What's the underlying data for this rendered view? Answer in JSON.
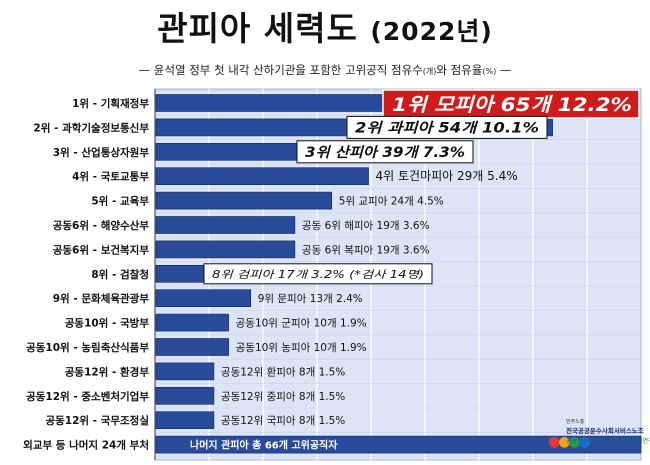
{
  "page": {
    "title": "관피아 세력도",
    "title_year": "(2022년)",
    "subtitle_main": "— 윤석열 정부 첫 내각 산하기관을 포함한 고위공직 점유수",
    "subtitle_unit1": "(개)",
    "subtitle_mid": "와 점유율",
    "subtitle_unit2": "(%)",
    "subtitle_end": " —"
  },
  "logo": {
    "line1": "민주노총",
    "line2": "전국공공운수사회서비스노조",
    "line3": "공공정책연구원(준비)경제정책연구소"
  },
  "chart_data": {
    "type": "bar",
    "orientation": "horizontal",
    "title": "관피아 세력도 (2022년)",
    "categories": [
      "1위 - 기획재정부",
      "2위 - 과학기술정보통신부",
      "3위 - 산업통상자원부",
      "4위 - 국토교통부",
      "5위 - 교육부",
      "공동6위 - 해양수산부",
      "공동6위 - 보건복지부",
      "8위 - 검찰청",
      "9위 - 문화체육관광부",
      "공동10위 - 국방부",
      "공동10위 - 농림축산식품부",
      "공동12위 - 환경부",
      "공동12위 - 중소벤처기업부",
      "공동12위 - 국무조정실",
      "외교부 등 나머지 24개 부처"
    ],
    "series": [
      {
        "values": [
          65,
          54,
          39,
          29,
          24,
          19,
          19,
          17,
          13,
          10,
          10,
          8,
          8,
          8,
          66
        ]
      }
    ],
    "data_labels": [
      "1위 모피아 65개 12.2%",
      "2위 과피아 54개 10.1%",
      "3위 산피아 39개 7.3%",
      "4위 토건마피아 29개 5.4%",
      "5위 교피아 24개 4.5%",
      "공동 6위 해피아 19개 3.6%",
      "공동 6위 복피아 19개 3.6%",
      "8위 검피아 17개 3.2% (*검사 14명)",
      "9위 문피아 13개 2.4%",
      "공동10위 군피아 10개 1.9%",
      "공동10위 농피아 10개 1.9%",
      "공동12위 환피아 8개 1.5%",
      "공동12위 중피아 8개 1.5%",
      "공동12위 국피아 8개 1.5%",
      "나머지 관피아 총 66개 고위공직자"
    ],
    "xlim": [
      0,
      66
    ],
    "grid": true,
    "colors": {
      "bar": "#2a4a9a",
      "bar_border": "#13245e",
      "plot_bg": "#dbe5f5",
      "gridline": "#ffffff",
      "highlight_red": "#cf1b1b"
    }
  }
}
